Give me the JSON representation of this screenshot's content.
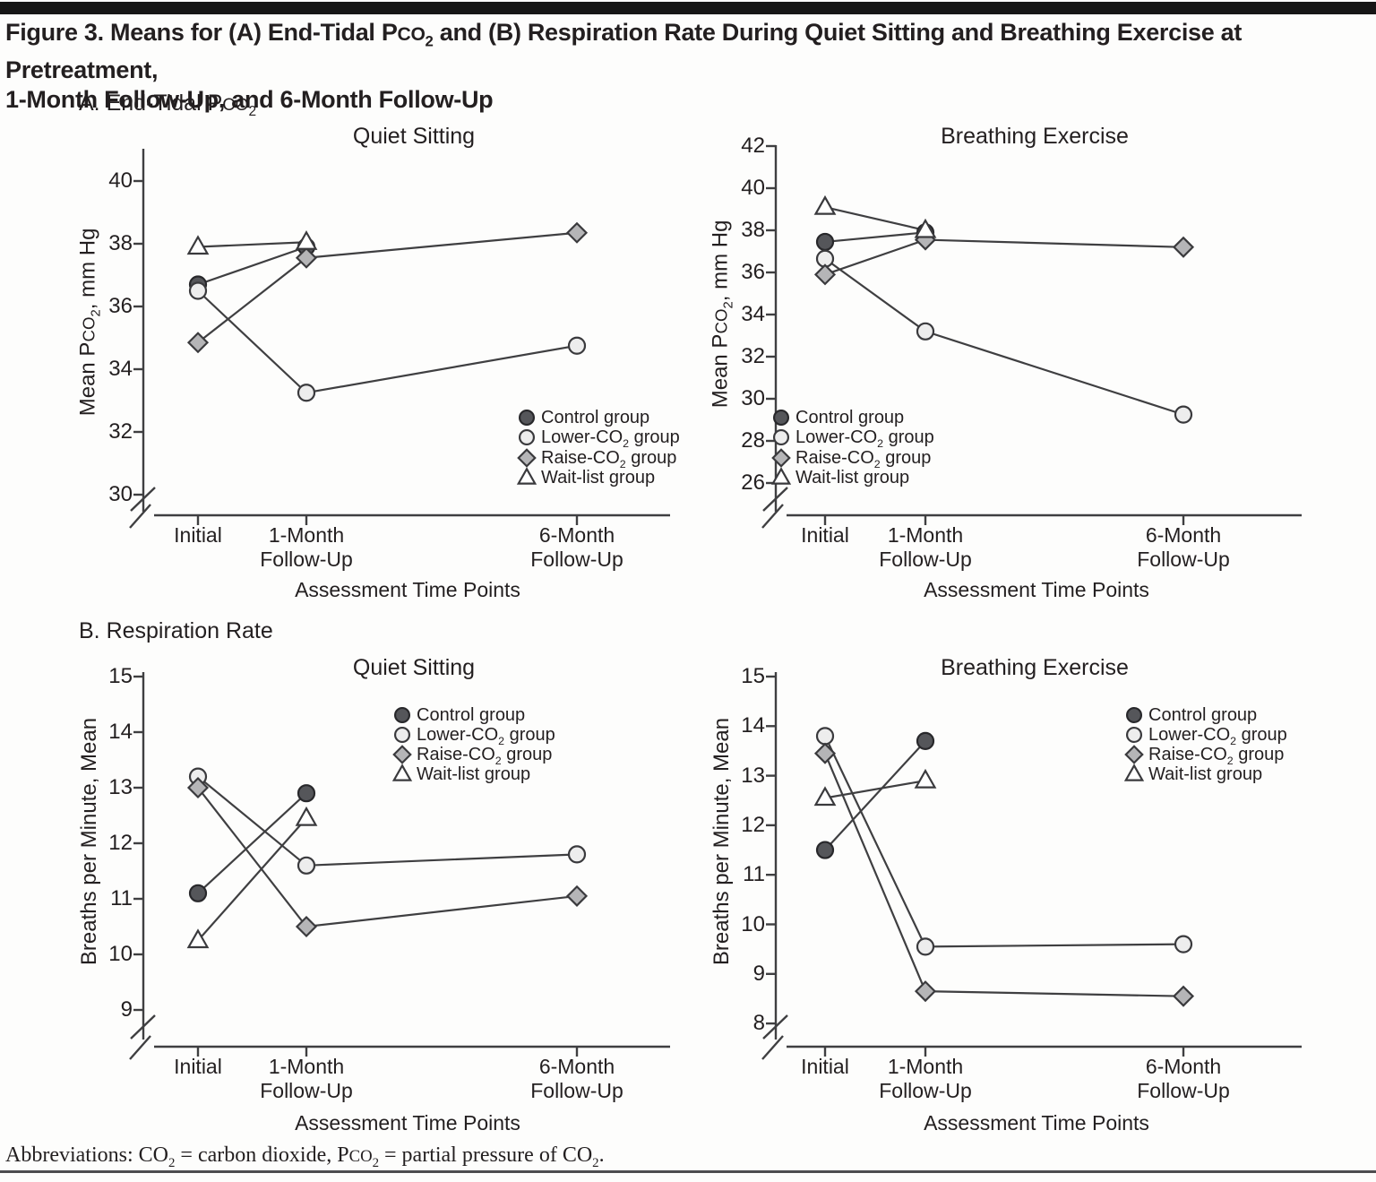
{
  "page": {
    "title_line1": "Figure 3. Means for (A) End-Tidal P§CO§_2 and (B) Respiration Rate During Quiet Sitting and Breathing Exercise at Pretreatment,",
    "title_line2": "1-Month Follow-Up, and 6-Month Follow-Up",
    "panel_a_label": "A. End-Tidal P§CO§_2",
    "panel_b_label": "B. Respiration Rate",
    "abbreviations": "Abbreviations: CO_2 = carbon dioxide, P§CO§_2 = partial pressure of CO_2.",
    "colors": {
      "text": "#231f20",
      "line": "#3f3f41",
      "top_bar": "#161616",
      "bottom_rule": "#4d4d4f"
    }
  },
  "markers": {
    "circle-dark": {
      "shape": "circle",
      "fill": "#55565a",
      "stroke": "#28282b"
    },
    "circle-light": {
      "shape": "circle",
      "fill": "#ededed",
      "stroke": "#3a3a3d"
    },
    "diamond": {
      "shape": "diamond",
      "fill": "#b5b5b7",
      "stroke": "#3a3a3d"
    },
    "triangle": {
      "shape": "triangle",
      "fill": "#ffffff",
      "stroke": "#3a3a3d"
    }
  },
  "chart_data": [
    {
      "type": "line",
      "panel": "A",
      "title": "Quiet Sitting",
      "ylabel": "Mean P§CO§_2, mm Hg",
      "xlabel": "Assessment Time Points",
      "categories": [
        "Initial",
        "1-Month\nFollow-Up",
        "6-Month\nFollow-Up"
      ],
      "y_ticks": [
        40,
        38,
        36,
        34,
        32,
        30
      ],
      "ylim": [
        30,
        41
      ],
      "axis_break": true,
      "legend_position": "bottom-right",
      "series": [
        {
          "name": "Control group",
          "marker": "circle-dark",
          "values": [
            36.7,
            37.9,
            null
          ]
        },
        {
          "name": "Lower-CO_2 group",
          "marker": "circle-light",
          "values": [
            36.5,
            33.25,
            34.75
          ]
        },
        {
          "name": "Raise-CO_2 group",
          "marker": "diamond",
          "values": [
            34.85,
            37.55,
            38.35
          ]
        },
        {
          "name": "Wait-list group",
          "marker": "triangle",
          "values": [
            37.9,
            38.05,
            null
          ]
        }
      ]
    },
    {
      "type": "line",
      "panel": "A",
      "title": "Breathing Exercise",
      "ylabel": "Mean P§CO§_2, mm Hg",
      "xlabel": "Assessment Time Points",
      "categories": [
        "Initial",
        "1-Month\nFollow-Up",
        "6-Month\nFollow-Up"
      ],
      "y_ticks": [
        42,
        40,
        38,
        36,
        34,
        32,
        30,
        28,
        26
      ],
      "ylim": [
        26,
        42
      ],
      "axis_break": true,
      "legend_position": "bottom-left",
      "series": [
        {
          "name": "Control group",
          "marker": "circle-dark",
          "values": [
            37.45,
            37.9,
            null
          ]
        },
        {
          "name": "Lower-CO_2 group",
          "marker": "circle-light",
          "values": [
            36.65,
            33.2,
            29.25
          ]
        },
        {
          "name": "Raise-CO_2 group",
          "marker": "diamond",
          "values": [
            35.9,
            37.55,
            37.2
          ]
        },
        {
          "name": "Wait-list group",
          "marker": "triangle",
          "values": [
            39.1,
            38.0,
            null
          ]
        }
      ]
    },
    {
      "type": "line",
      "panel": "B",
      "title": "Quiet Sitting",
      "ylabel": "Breaths per Minute, Mean",
      "xlabel": "Assessment Time Points",
      "categories": [
        "Initial",
        "1-Month\nFollow-Up",
        "6-Month\nFollow-Up"
      ],
      "y_ticks": [
        15,
        14,
        13,
        12,
        11,
        10,
        9
      ],
      "ylim": [
        9,
        15
      ],
      "axis_break": true,
      "legend_position": "top-right",
      "series": [
        {
          "name": "Control group",
          "marker": "circle-dark",
          "values": [
            11.1,
            12.9,
            null
          ]
        },
        {
          "name": "Lower-CO_2 group",
          "marker": "circle-light",
          "values": [
            13.2,
            11.6,
            11.8
          ]
        },
        {
          "name": "Raise-CO_2 group",
          "marker": "diamond",
          "values": [
            13.0,
            10.5,
            11.05
          ]
        },
        {
          "name": "Wait-list group",
          "marker": "triangle",
          "values": [
            10.25,
            12.45,
            null
          ]
        }
      ]
    },
    {
      "type": "line",
      "panel": "B",
      "title": "Breathing Exercise",
      "ylabel": "Breaths per Minute, Mean",
      "xlabel": "Assessment Time Points",
      "categories": [
        "Initial",
        "1-Month\nFollow-Up",
        "6-Month\nFollow-Up"
      ],
      "y_ticks": [
        15,
        14,
        13,
        12,
        11,
        10,
        9,
        8
      ],
      "ylim": [
        8,
        15
      ],
      "axis_break": true,
      "legend_position": "top-right",
      "series": [
        {
          "name": "Control group",
          "marker": "circle-dark",
          "values": [
            11.5,
            13.7,
            null
          ]
        },
        {
          "name": "Lower-CO_2 group",
          "marker": "circle-light",
          "values": [
            13.8,
            9.55,
            9.6
          ]
        },
        {
          "name": "Raise-CO_2 group",
          "marker": "diamond",
          "values": [
            13.45,
            8.65,
            8.55
          ]
        },
        {
          "name": "Wait-list group",
          "marker": "triangle",
          "values": [
            12.55,
            12.9,
            null
          ]
        }
      ]
    }
  ]
}
